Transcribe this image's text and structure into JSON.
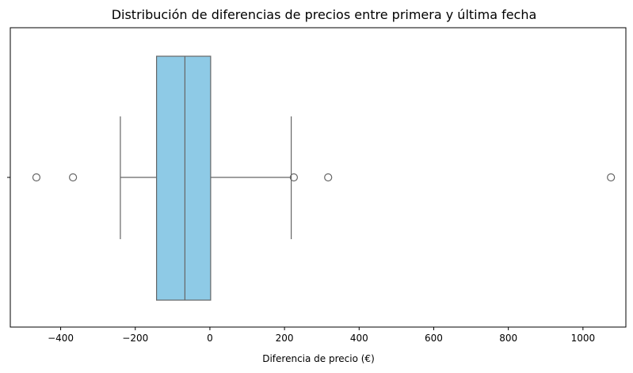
{
  "chart_data": {
    "type": "boxplot",
    "title": "Distribución de diferencias de precios entre primera y última fecha",
    "xlabel": "Diferencia de precio (€)",
    "ylabel": "",
    "xlim": [
      -535,
      1115
    ],
    "xticks": [
      -400,
      -200,
      0,
      200,
      400,
      600,
      800,
      1000
    ],
    "xtick_labels": [
      "−400",
      "−200",
      "0",
      "200",
      "400",
      "600",
      "800",
      "1000"
    ],
    "box": {
      "whisker_low": -240,
      "q1": -143,
      "median": -67,
      "q3": 2,
      "whisker_high": 218
    },
    "outliers": [
      -465,
      -367,
      225,
      317,
      1075
    ],
    "colors": {
      "box_fill": "#8ecae6",
      "lines": "#666666",
      "axes": "#000000"
    },
    "grid": false
  }
}
